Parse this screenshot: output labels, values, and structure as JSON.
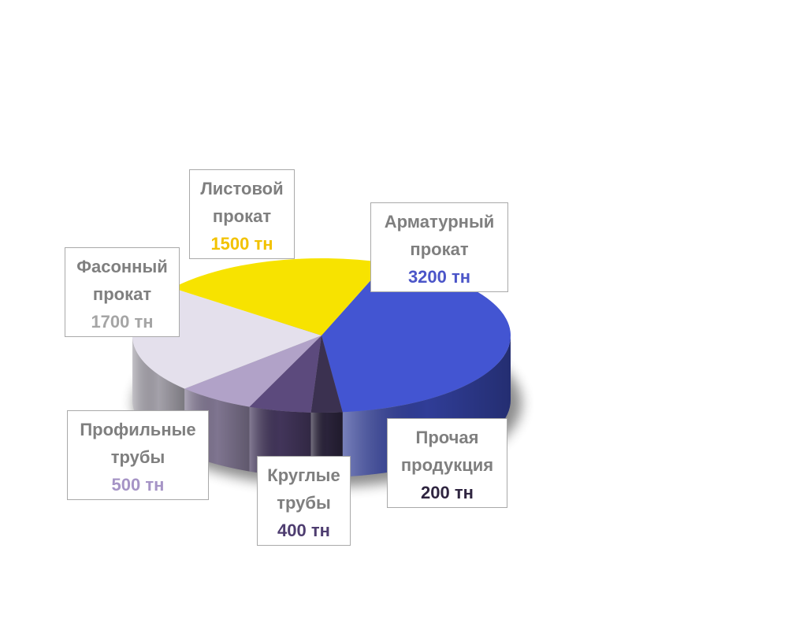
{
  "chart_data": {
    "type": "pie",
    "subtype": "3d",
    "unit": "тн",
    "slices": [
      {
        "name_lines": [
          "Арматурный",
          "прокат"
        ],
        "value": 3200,
        "value_label": "3200 тн",
        "color": "#4355d2",
        "label_color": "#4b55c8"
      },
      {
        "name_lines": [
          "Прочая",
          "продукция"
        ],
        "value": 200,
        "value_label": "200 тн",
        "color": "#3b3150",
        "label_color": "#2f2540"
      },
      {
        "name_lines": [
          "Круглые",
          "трубы"
        ],
        "value": 400,
        "value_label": "400 тн",
        "color": "#5c4a7d",
        "label_color": "#4e3d70"
      },
      {
        "name_lines": [
          "Профильные",
          "трубы"
        ],
        "value": 500,
        "value_label": "500 тн",
        "color": "#b1a2c8",
        "label_color": "#a694c6"
      },
      {
        "name_lines": [
          "Фасонный",
          "прокат"
        ],
        "value": 1700,
        "value_label": "1700 тн",
        "color": "#e4e0ec",
        "label_color": "#a5a5a5"
      },
      {
        "name_lines": [
          "Листовой",
          "прокат"
        ],
        "value": 1500,
        "value_label": "1500 тн",
        "color": "#f7e300",
        "label_color": "#f2c200"
      }
    ]
  }
}
